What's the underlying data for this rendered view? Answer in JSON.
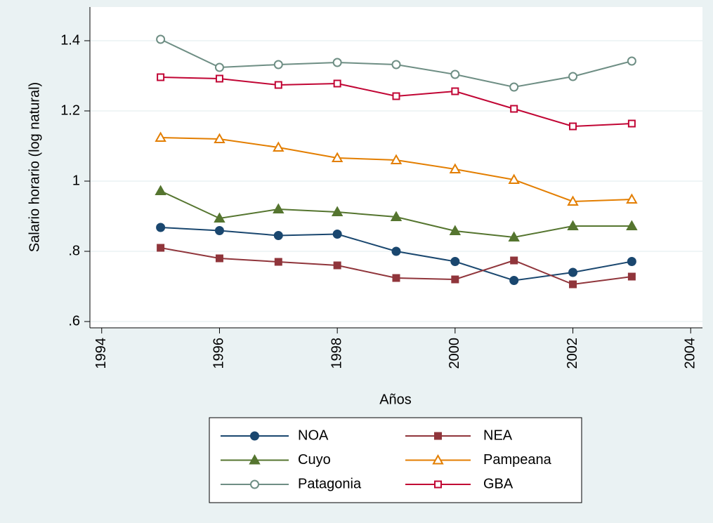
{
  "chart_data": {
    "type": "line",
    "x_label": "Años",
    "y_label": "Salario horario (log natural)",
    "x": [
      1995,
      1996,
      1997,
      1998,
      1999,
      2000,
      2001,
      2002,
      2003
    ],
    "xlim": [
      1993.8,
      2004.2
    ],
    "xticks": [
      1994,
      1996,
      1998,
      2000,
      2002,
      2004
    ],
    "ylim": [
      0.582,
      1.496
    ],
    "yticks": [
      {
        "value": 0.6,
        "label": ".6"
      },
      {
        "value": 0.8,
        "label": ".8"
      },
      1,
      1.2,
      1.4
    ],
    "grid": true,
    "series": [
      {
        "name": "NOA",
        "color": "#1a476f",
        "marker": "circle",
        "filled": true,
        "values": [
          0.868,
          0.859,
          0.845,
          0.849,
          0.8,
          0.771,
          0.717,
          0.74,
          0.771
        ]
      },
      {
        "name": "NEA",
        "color": "#90353b",
        "marker": "square",
        "filled": true,
        "values": [
          0.81,
          0.78,
          0.77,
          0.76,
          0.724,
          0.72,
          0.774,
          0.706,
          0.728
        ]
      },
      {
        "name": "Cuyo",
        "color": "#55752f",
        "marker": "triangle",
        "filled": true,
        "values": [
          0.972,
          0.894,
          0.92,
          0.912,
          0.898,
          0.858,
          0.84,
          0.872,
          0.872
        ]
      },
      {
        "name": "Pampeana",
        "color": "#e37e00",
        "marker": "triangle",
        "filled": false,
        "values": [
          1.124,
          1.12,
          1.096,
          1.066,
          1.06,
          1.034,
          1.004,
          0.942,
          0.948
        ]
      },
      {
        "name": "Patagonia",
        "color": "#6e8e84",
        "marker": "circle",
        "filled": false,
        "values": [
          1.404,
          1.324,
          1.332,
          1.338,
          1.332,
          1.304,
          1.268,
          1.298,
          1.342
        ]
      },
      {
        "name": "GBA",
        "color": "#c10534",
        "marker": "square",
        "filled": false,
        "values": [
          1.296,
          1.292,
          1.274,
          1.278,
          1.242,
          1.256,
          1.206,
          1.156,
          1.164
        ]
      }
    ]
  }
}
